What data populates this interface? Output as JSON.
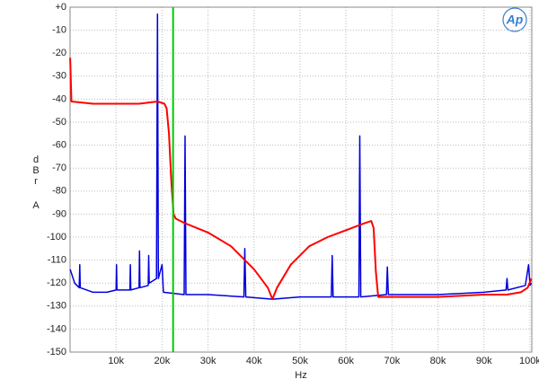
{
  "chart_data": {
    "type": "line",
    "logo": "Ap",
    "ylabel": "dBr",
    "ylabel_unit": "A",
    "xlabel": "Hz",
    "xlim": [
      0,
      100400
    ],
    "ylim": [
      -150,
      0
    ],
    "yticks": [
      {
        "value": 0,
        "label": "+0"
      },
      -10,
      -20,
      -30,
      -40,
      -50,
      -60,
      -70,
      -80,
      -90,
      -100,
      -110,
      -120,
      -130,
      -140,
      -150
    ],
    "xticks": [
      {
        "value": 10000,
        "label": "10k"
      },
      {
        "value": 20000,
        "label": "20k"
      },
      {
        "value": 30000,
        "label": "30k"
      },
      {
        "value": 40000,
        "label": "40k"
      },
      {
        "value": 50000,
        "label": "50k"
      },
      {
        "value": 60000,
        "label": "60k"
      },
      {
        "value": 70000,
        "label": "70k"
      },
      {
        "value": 80000,
        "label": "80k"
      },
      {
        "value": 90000,
        "label": "90k"
      },
      {
        "value": 100000,
        "label": "100k"
      }
    ],
    "grid": true,
    "vline": 22400,
    "vline_color": "#00cc00",
    "series": [
      {
        "color": "#0000dd",
        "x": [
          20,
          1000,
          2000,
          2100,
          2200,
          5000,
          8000,
          10000,
          10100,
          10200,
          13000,
          13100,
          13200,
          15000,
          15100,
          15200,
          17000,
          17100,
          17200,
          18800,
          19000,
          19200,
          20000,
          20300,
          24800,
          25000,
          25200,
          30000,
          37800,
          38000,
          38200,
          44000,
          50000,
          56800,
          57000,
          57200,
          62800,
          63000,
          63200,
          68800,
          69000,
          69200,
          80000,
          90000,
          94800,
          95000,
          95200,
          99000,
          99700,
          100000,
          100300
        ],
        "values": [
          -114,
          -120,
          -122,
          -112,
          -122,
          -124,
          -124,
          -123,
          -112,
          -123,
          -123,
          -112,
          -123,
          -122,
          -106,
          -122,
          -121,
          -108,
          -120,
          -118,
          -3,
          -118,
          -112,
          -124,
          -125,
          -56,
          -125,
          -125,
          -126,
          -105,
          -126,
          -127,
          -126,
          -126,
          -108,
          -126,
          -126,
          -56,
          -126,
          -125,
          -113,
          -125,
          -125,
          -124,
          -123,
          -118,
          -123,
          -121,
          -112,
          -121,
          -120
        ]
      },
      {
        "color": "#ff0000",
        "x": [
          20,
          300,
          5000,
          10000,
          15000,
          19000,
          20500,
          21000,
          21500,
          22000,
          22500,
          23000,
          25000,
          30000,
          35000,
          40000,
          43000,
          44000,
          45000,
          48000,
          52000,
          56000,
          60000,
          64000,
          65500,
          66000,
          66500,
          67000,
          70000,
          80000,
          90000,
          95000,
          98000,
          99500,
          100300
        ],
        "values": [
          -22,
          -41,
          -42,
          -42,
          -42,
          -41,
          -42,
          -44,
          -55,
          -75,
          -90,
          -92,
          -94,
          -98,
          -104,
          -114,
          -122,
          -127,
          -122,
          -112,
          -104,
          -100,
          -97,
          -94,
          -93,
          -96,
          -115,
          -126,
          -126,
          -126,
          -125,
          -125,
          -124,
          -122,
          -118
        ]
      }
    ]
  }
}
